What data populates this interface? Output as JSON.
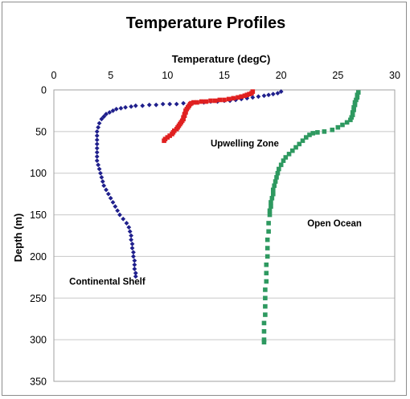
{
  "chart_data": {
    "type": "scatter",
    "title": "Temperature Profiles",
    "xlabel": "Temperature (degC)",
    "ylabel": "Depth (m)",
    "x_axis_position": "top",
    "y_axis_inverted": true,
    "xlim": [
      0,
      30
    ],
    "ylim": [
      0,
      350
    ],
    "xticks": [
      0,
      5,
      10,
      15,
      20,
      25,
      30
    ],
    "yticks": [
      0,
      50,
      100,
      150,
      200,
      250,
      300,
      350
    ],
    "grid": "horizontal",
    "legend": "none",
    "series": [
      {
        "name": "Continental Shelf",
        "color": "#1f1f8c",
        "marker": "diamond",
        "points": [
          [
            20.0,
            2
          ],
          [
            19.7,
            4
          ],
          [
            19.3,
            5
          ],
          [
            18.9,
            6
          ],
          [
            18.5,
            7
          ],
          [
            18.0,
            8
          ],
          [
            17.5,
            9
          ],
          [
            17.0,
            10
          ],
          [
            16.5,
            11
          ],
          [
            16.0,
            12
          ],
          [
            15.5,
            13
          ],
          [
            15.0,
            13
          ],
          [
            14.4,
            14
          ],
          [
            13.8,
            14
          ],
          [
            13.2,
            15
          ],
          [
            12.6,
            15
          ],
          [
            12.0,
            16
          ],
          [
            11.4,
            16
          ],
          [
            10.8,
            17
          ],
          [
            10.2,
            17
          ],
          [
            9.6,
            17
          ],
          [
            9.0,
            18
          ],
          [
            8.4,
            18
          ],
          [
            7.8,
            19
          ],
          [
            7.2,
            19
          ],
          [
            6.8,
            20
          ],
          [
            6.3,
            21
          ],
          [
            5.9,
            22
          ],
          [
            5.5,
            23
          ],
          [
            5.2,
            25
          ],
          [
            4.9,
            27
          ],
          [
            4.6,
            29
          ],
          [
            4.4,
            32
          ],
          [
            4.2,
            35
          ],
          [
            4.0,
            40
          ],
          [
            3.9,
            45
          ],
          [
            3.8,
            50
          ],
          [
            3.8,
            55
          ],
          [
            3.8,
            60
          ],
          [
            3.8,
            65
          ],
          [
            3.8,
            70
          ],
          [
            3.8,
            75
          ],
          [
            3.8,
            80
          ],
          [
            3.8,
            85
          ],
          [
            3.9,
            90
          ],
          [
            4.0,
            95
          ],
          [
            4.1,
            100
          ],
          [
            4.2,
            105
          ],
          [
            4.3,
            110
          ],
          [
            4.4,
            115
          ],
          [
            4.6,
            120
          ],
          [
            4.8,
            125
          ],
          [
            5.0,
            130
          ],
          [
            5.2,
            135
          ],
          [
            5.4,
            140
          ],
          [
            5.6,
            145
          ],
          [
            5.8,
            150
          ],
          [
            6.1,
            155
          ],
          [
            6.4,
            160
          ],
          [
            6.6,
            165
          ],
          [
            6.7,
            170
          ],
          [
            6.8,
            175
          ],
          [
            6.8,
            180
          ],
          [
            6.9,
            185
          ],
          [
            6.9,
            190
          ],
          [
            7.0,
            195
          ],
          [
            7.0,
            200
          ],
          [
            7.1,
            205
          ],
          [
            7.1,
            210
          ],
          [
            7.1,
            215
          ],
          [
            7.2,
            220
          ],
          [
            7.2,
            224
          ]
        ]
      },
      {
        "name": "Upwelling Zone",
        "color": "#e02020",
        "marker": "square",
        "points": [
          [
            17.5,
            2
          ],
          [
            17.4,
            4
          ],
          [
            17.2,
            5
          ],
          [
            17.0,
            6
          ],
          [
            16.8,
            7
          ],
          [
            16.5,
            8
          ],
          [
            16.2,
            9
          ],
          [
            15.8,
            10
          ],
          [
            15.4,
            11
          ],
          [
            15.0,
            12
          ],
          [
            14.6,
            12
          ],
          [
            14.2,
            13
          ],
          [
            13.8,
            13
          ],
          [
            13.4,
            14
          ],
          [
            13.0,
            14
          ],
          [
            12.6,
            15
          ],
          [
            12.3,
            15
          ],
          [
            12.1,
            16
          ],
          [
            12.0,
            17
          ],
          [
            11.9,
            19
          ],
          [
            11.8,
            21
          ],
          [
            11.7,
            23
          ],
          [
            11.6,
            25
          ],
          [
            11.6,
            27
          ],
          [
            11.5,
            29
          ],
          [
            11.5,
            31
          ],
          [
            11.4,
            33
          ],
          [
            11.4,
            35
          ],
          [
            11.3,
            37
          ],
          [
            11.2,
            39
          ],
          [
            11.1,
            41
          ],
          [
            11.0,
            43
          ],
          [
            10.9,
            45
          ],
          [
            10.8,
            47
          ],
          [
            10.6,
            49
          ],
          [
            10.5,
            51
          ],
          [
            10.4,
            53
          ],
          [
            10.2,
            55
          ],
          [
            10.0,
            57
          ],
          [
            9.8,
            59
          ],
          [
            9.7,
            61
          ]
        ]
      },
      {
        "name": "Open Ocean",
        "color": "#2e9960",
        "marker": "square",
        "points": [
          [
            26.8,
            3
          ],
          [
            26.7,
            6
          ],
          [
            26.7,
            9
          ],
          [
            26.6,
            12
          ],
          [
            26.5,
            15
          ],
          [
            26.5,
            18
          ],
          [
            26.4,
            21
          ],
          [
            26.4,
            24
          ],
          [
            26.3,
            27
          ],
          [
            26.3,
            30
          ],
          [
            26.2,
            33
          ],
          [
            26.1,
            36
          ],
          [
            25.8,
            39
          ],
          [
            25.4,
            42
          ],
          [
            25.0,
            45
          ],
          [
            24.5,
            48
          ],
          [
            23.8,
            50
          ],
          [
            23.2,
            51
          ],
          [
            22.8,
            52
          ],
          [
            22.5,
            54
          ],
          [
            22.2,
            57
          ],
          [
            21.9,
            61
          ],
          [
            21.6,
            65
          ],
          [
            21.3,
            69
          ],
          [
            21.0,
            73
          ],
          [
            20.7,
            77
          ],
          [
            20.4,
            81
          ],
          [
            20.2,
            85
          ],
          [
            20.0,
            90
          ],
          [
            19.8,
            95
          ],
          [
            19.7,
            100
          ],
          [
            19.6,
            105
          ],
          [
            19.5,
            110
          ],
          [
            19.4,
            115
          ],
          [
            19.3,
            120
          ],
          [
            19.3,
            125
          ],
          [
            19.2,
            130
          ],
          [
            19.1,
            135
          ],
          [
            19.1,
            140
          ],
          [
            19.0,
            145
          ],
          [
            19.0,
            150
          ],
          [
            18.9,
            160
          ],
          [
            18.9,
            170
          ],
          [
            18.8,
            180
          ],
          [
            18.8,
            190
          ],
          [
            18.8,
            200
          ],
          [
            18.7,
            210
          ],
          [
            18.7,
            220
          ],
          [
            18.7,
            230
          ],
          [
            18.6,
            240
          ],
          [
            18.6,
            250
          ],
          [
            18.6,
            260
          ],
          [
            18.6,
            270
          ],
          [
            18.5,
            280
          ],
          [
            18.5,
            290
          ],
          [
            18.5,
            300
          ],
          [
            18.5,
            303
          ]
        ]
      }
    ],
    "annotations": [
      {
        "text": "Upwelling Zone",
        "x": 16.8,
        "y": 68
      },
      {
        "text": "Open Ocean",
        "x": 24.7,
        "y": 164
      },
      {
        "text": "Continental Shelf",
        "x": 4.7,
        "y": 234
      }
    ]
  }
}
